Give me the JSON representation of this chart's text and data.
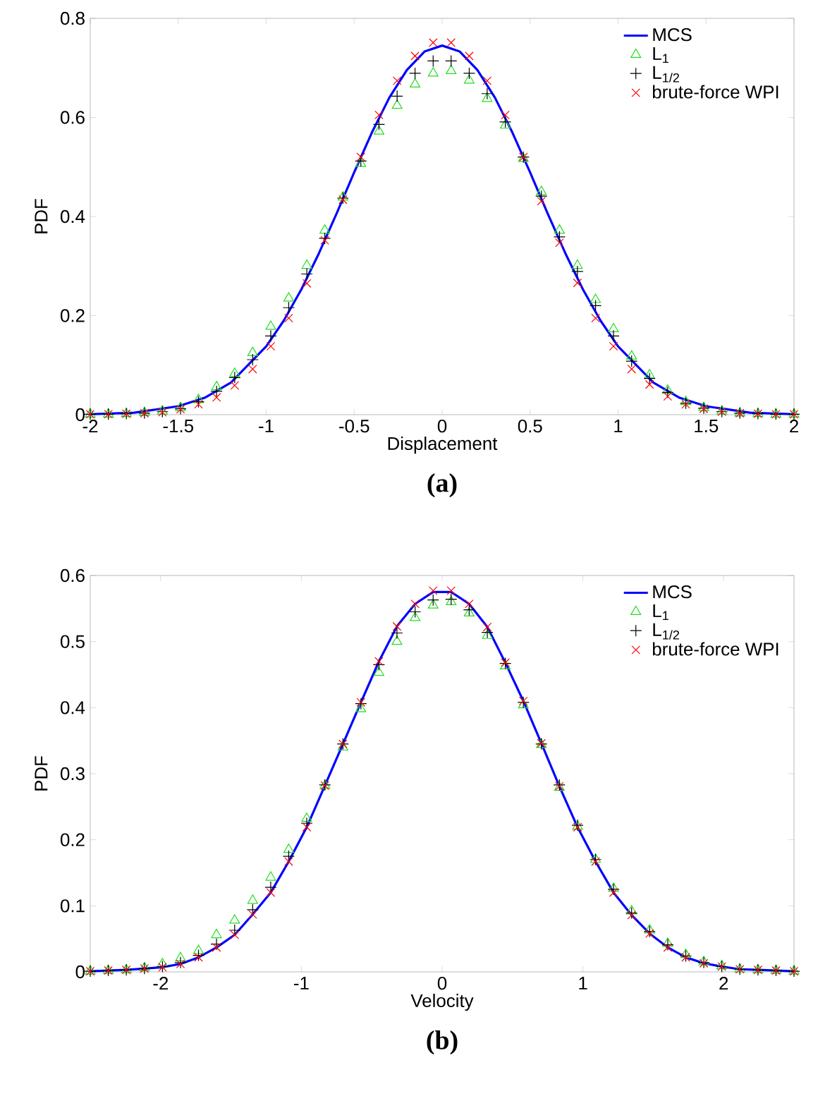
{
  "chart_data": [
    {
      "type": "scatter",
      "xlabel": "Displacement",
      "ylabel": "PDF",
      "annotations": [
        "(a)"
      ],
      "legend": "top right",
      "x": [
        -2,
        -1.897,
        -1.795,
        -1.692,
        -1.59,
        -1.487,
        -1.385,
        -1.282,
        -1.179,
        -1.077,
        -0.974,
        -0.872,
        -0.769,
        -0.667,
        -0.564,
        -0.462,
        -0.359,
        -0.256,
        -0.154,
        -0.051,
        0.051,
        0.154,
        0.256,
        0.359,
        0.462,
        0.564,
        0.667,
        0.769,
        0.872,
        0.974,
        1.077,
        1.179,
        1.282,
        1.385,
        1.487,
        1.59,
        1.692,
        1.795,
        1.897,
        2
      ],
      "xlim": [
        -2,
        2
      ],
      "ylim": [
        0,
        0.8
      ],
      "xticks": [
        -2,
        -1.5,
        -1,
        -0.5,
        0,
        0.5,
        1,
        1.5,
        2
      ],
      "yticks": [
        0,
        0.2,
        0.4,
        0.6,
        0.8
      ],
      "series": [
        {
          "name": "MCS",
          "type": "line",
          "marker": "none",
          "color": "#0000ff",
          "x": [
            -2,
            -1.75,
            -1.5,
            -1.35,
            -1.2,
            -1,
            -0.9,
            -0.8,
            -0.7,
            -0.6,
            -0.5,
            -0.4,
            -0.3,
            -0.2,
            -0.1,
            0,
            0.1,
            0.2,
            0.3,
            0.4,
            0.5,
            0.6,
            0.7,
            0.8,
            0.9,
            1,
            1.2,
            1.35,
            1.5,
            1.75,
            2
          ],
          "values": [
            0.001,
            0.004,
            0.017,
            0.034,
            0.065,
            0.138,
            0.19,
            0.253,
            0.326,
            0.406,
            0.489,
            0.569,
            0.64,
            0.696,
            0.733,
            0.745,
            0.733,
            0.696,
            0.64,
            0.569,
            0.489,
            0.406,
            0.326,
            0.253,
            0.19,
            0.138,
            0.065,
            0.034,
            0.017,
            0.004,
            0.001
          ]
        },
        {
          "name": "L$_{1}$",
          "marker": "triangle",
          "color": "#22dd22",
          "values": [
            0.001,
            0.001,
            0.002,
            0.004,
            0.007,
            0.014,
            0.03,
            0.056,
            0.083,
            0.125,
            0.178,
            0.235,
            0.301,
            0.372,
            0.439,
            0.507,
            0.572,
            0.624,
            0.667,
            0.689,
            0.694,
            0.675,
            0.638,
            0.584,
            0.517,
            0.45,
            0.372,
            0.301,
            0.232,
            0.173,
            0.118,
            0.08,
            0.049,
            0.026,
            0.014,
            0.007,
            0.003,
            0.002,
            0.001,
            0.001
          ]
        },
        {
          "name": "L$_{1/2}$",
          "marker": "plus",
          "color": "#000000",
          "values": [
            0.001,
            0.001,
            0.002,
            0.003,
            0.006,
            0.012,
            0.026,
            0.047,
            0.075,
            0.111,
            0.159,
            0.216,
            0.284,
            0.356,
            0.437,
            0.512,
            0.586,
            0.643,
            0.689,
            0.714,
            0.714,
            0.689,
            0.648,
            0.591,
            0.52,
            0.441,
            0.359,
            0.289,
            0.22,
            0.159,
            0.108,
            0.073,
            0.045,
            0.023,
            0.013,
            0.006,
            0.003,
            0.002,
            0.001,
            0.001
          ]
        },
        {
          "name": "brute-force WPI",
          "marker": "cross",
          "color": "#ff0000",
          "values": [
            0.001,
            0.001,
            0.002,
            0.003,
            0.005,
            0.011,
            0.021,
            0.035,
            0.059,
            0.092,
            0.138,
            0.195,
            0.265,
            0.352,
            0.434,
            0.52,
            0.605,
            0.674,
            0.724,
            0.751,
            0.751,
            0.724,
            0.674,
            0.605,
            0.52,
            0.431,
            0.347,
            0.266,
            0.195,
            0.138,
            0.092,
            0.061,
            0.037,
            0.021,
            0.012,
            0.006,
            0.003,
            0.002,
            0.001,
            0.001
          ]
        }
      ]
    },
    {
      "type": "scatter",
      "xlabel": "Velocity",
      "ylabel": "PDF",
      "annotations": [
        "(b)"
      ],
      "legend": "top right",
      "x": [
        -2.5,
        -2.372,
        -2.244,
        -2.115,
        -1.987,
        -1.859,
        -1.731,
        -1.603,
        -1.474,
        -1.346,
        -1.218,
        -1.09,
        -0.962,
        -0.833,
        -0.705,
        -0.577,
        -0.449,
        -0.321,
        -0.192,
        -0.064,
        0.064,
        0.192,
        0.321,
        0.449,
        0.577,
        0.705,
        0.833,
        0.962,
        1.09,
        1.218,
        1.346,
        1.474,
        1.603,
        1.731,
        1.859,
        1.987,
        2.115,
        2.244,
        2.372,
        2.5
      ],
      "xlim": [
        -2.5,
        2.5
      ],
      "ylim": [
        0,
        0.6
      ],
      "xticks": [
        -2,
        -1,
        0,
        1,
        2
      ],
      "yticks": [
        0,
        0.1,
        0.2,
        0.3,
        0.4,
        0.5,
        0.6
      ],
      "series": [
        {
          "name": "MCS",
          "type": "line",
          "marker": "none",
          "color": "#0000ff",
          "values": [
            0.001,
            0.002,
            0.003,
            0.005,
            0.007,
            0.012,
            0.022,
            0.037,
            0.056,
            0.087,
            0.12,
            0.167,
            0.219,
            0.282,
            0.345,
            0.408,
            0.47,
            0.523,
            0.557,
            0.575,
            0.575,
            0.557,
            0.522,
            0.468,
            0.41,
            0.346,
            0.281,
            0.219,
            0.167,
            0.12,
            0.086,
            0.058,
            0.037,
            0.022,
            0.013,
            0.008,
            0.004,
            0.003,
            0.002,
            0.001
          ]
        },
        {
          "name": "L$_{1}$",
          "marker": "triangle",
          "color": "#22dd22",
          "values": [
            0.001,
            0.002,
            0.003,
            0.006,
            0.012,
            0.021,
            0.032,
            0.056,
            0.078,
            0.108,
            0.143,
            0.185,
            0.232,
            0.282,
            0.34,
            0.398,
            0.453,
            0.5,
            0.536,
            0.555,
            0.56,
            0.543,
            0.509,
            0.463,
            0.404,
            0.344,
            0.279,
            0.22,
            0.17,
            0.126,
            0.092,
            0.063,
            0.043,
            0.026,
            0.015,
            0.009,
            0.004,
            0.003,
            0.002,
            0.001
          ]
        },
        {
          "name": "L$_{1/2}$",
          "marker": "plus",
          "color": "#000000",
          "values": [
            0.001,
            0.002,
            0.003,
            0.005,
            0.008,
            0.014,
            0.025,
            0.042,
            0.063,
            0.094,
            0.128,
            0.175,
            0.225,
            0.283,
            0.345,
            0.406,
            0.465,
            0.513,
            0.545,
            0.563,
            0.564,
            0.548,
            0.514,
            0.467,
            0.408,
            0.345,
            0.283,
            0.222,
            0.17,
            0.125,
            0.089,
            0.061,
            0.041,
            0.024,
            0.014,
            0.008,
            0.004,
            0.003,
            0.002,
            0.001
          ]
        },
        {
          "name": "brute-force WPI",
          "marker": "cross",
          "color": "#ff0000",
          "values": [
            0.001,
            0.002,
            0.003,
            0.005,
            0.007,
            0.012,
            0.022,
            0.037,
            0.056,
            0.087,
            0.12,
            0.167,
            0.219,
            0.282,
            0.345,
            0.408,
            0.47,
            0.523,
            0.557,
            0.577,
            0.577,
            0.557,
            0.522,
            0.468,
            0.41,
            0.346,
            0.281,
            0.219,
            0.167,
            0.12,
            0.086,
            0.058,
            0.037,
            0.022,
            0.013,
            0.008,
            0.004,
            0.003,
            0.002,
            0.001
          ]
        }
      ]
    }
  ]
}
